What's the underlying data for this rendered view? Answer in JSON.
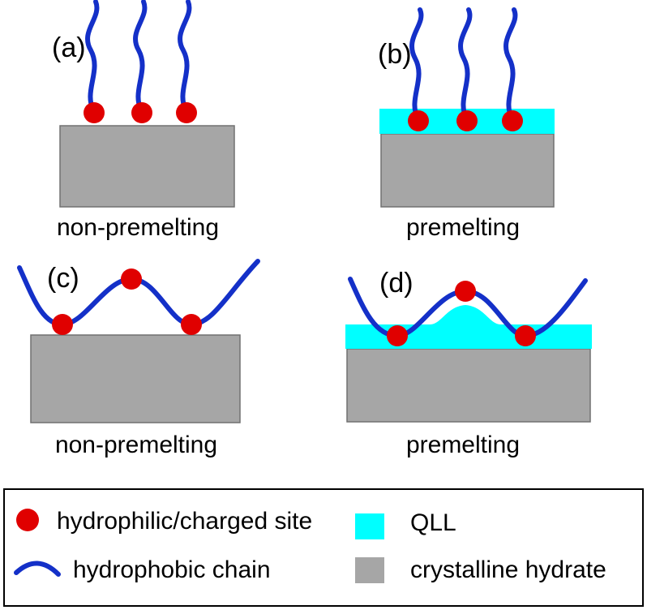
{
  "panels": {
    "a": {
      "tag": "(a)",
      "caption": "non-premelting"
    },
    "b": {
      "tag": "(b)",
      "caption": "premelting"
    },
    "c": {
      "tag": "(c)",
      "caption": "non-premelting"
    },
    "d": {
      "tag": "(d)",
      "caption": "premelting"
    }
  },
  "legend": {
    "site": "hydrophilic/charged site",
    "chain": "hydrophobic chain",
    "qll": "QLL",
    "hydrate": "crystalline hydrate"
  },
  "colors": {
    "site": "#e00000",
    "chain": "#1430c8",
    "qll": "#00ffff",
    "hydrate": "#a6a6a6",
    "hydrate_edge": "#707070",
    "frame": "#000000"
  }
}
